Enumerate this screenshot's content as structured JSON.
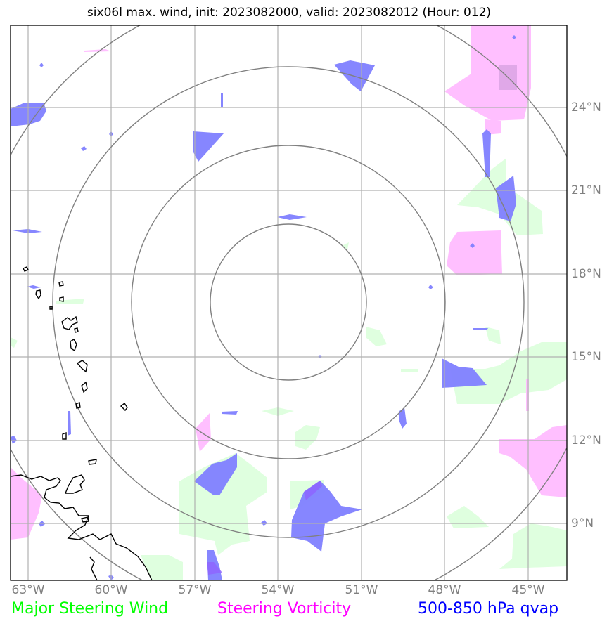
{
  "title": "six06l max. wind, init: 2023082000, valid: 2023082012 (Hour: 012)",
  "longitude_labels": [
    "63°W",
    "60°W",
    "57°W",
    "54°W",
    "51°W",
    "48°W",
    "45°W"
  ],
  "latitude_labels": [
    "24°N",
    "21°N",
    "18°N",
    "15°N",
    "12°N",
    "9°N"
  ],
  "legend": {
    "wind": {
      "label": "Major Steering Wind",
      "color": "#00ff00"
    },
    "vorticity": {
      "label": "Steering Vorticity",
      "color": "#ff00ff"
    },
    "qvap": {
      "label": "500-850 hPa qvap",
      "color": "#0000ff"
    }
  },
  "layer_colors": {
    "wind_fill": "#dfffdf",
    "vorticity_fill": "#ffbfff",
    "qvap_fill": "#7f7fff",
    "grid": "#b0b0b0",
    "range_rings": "#808080",
    "coastline": "#000000"
  }
}
